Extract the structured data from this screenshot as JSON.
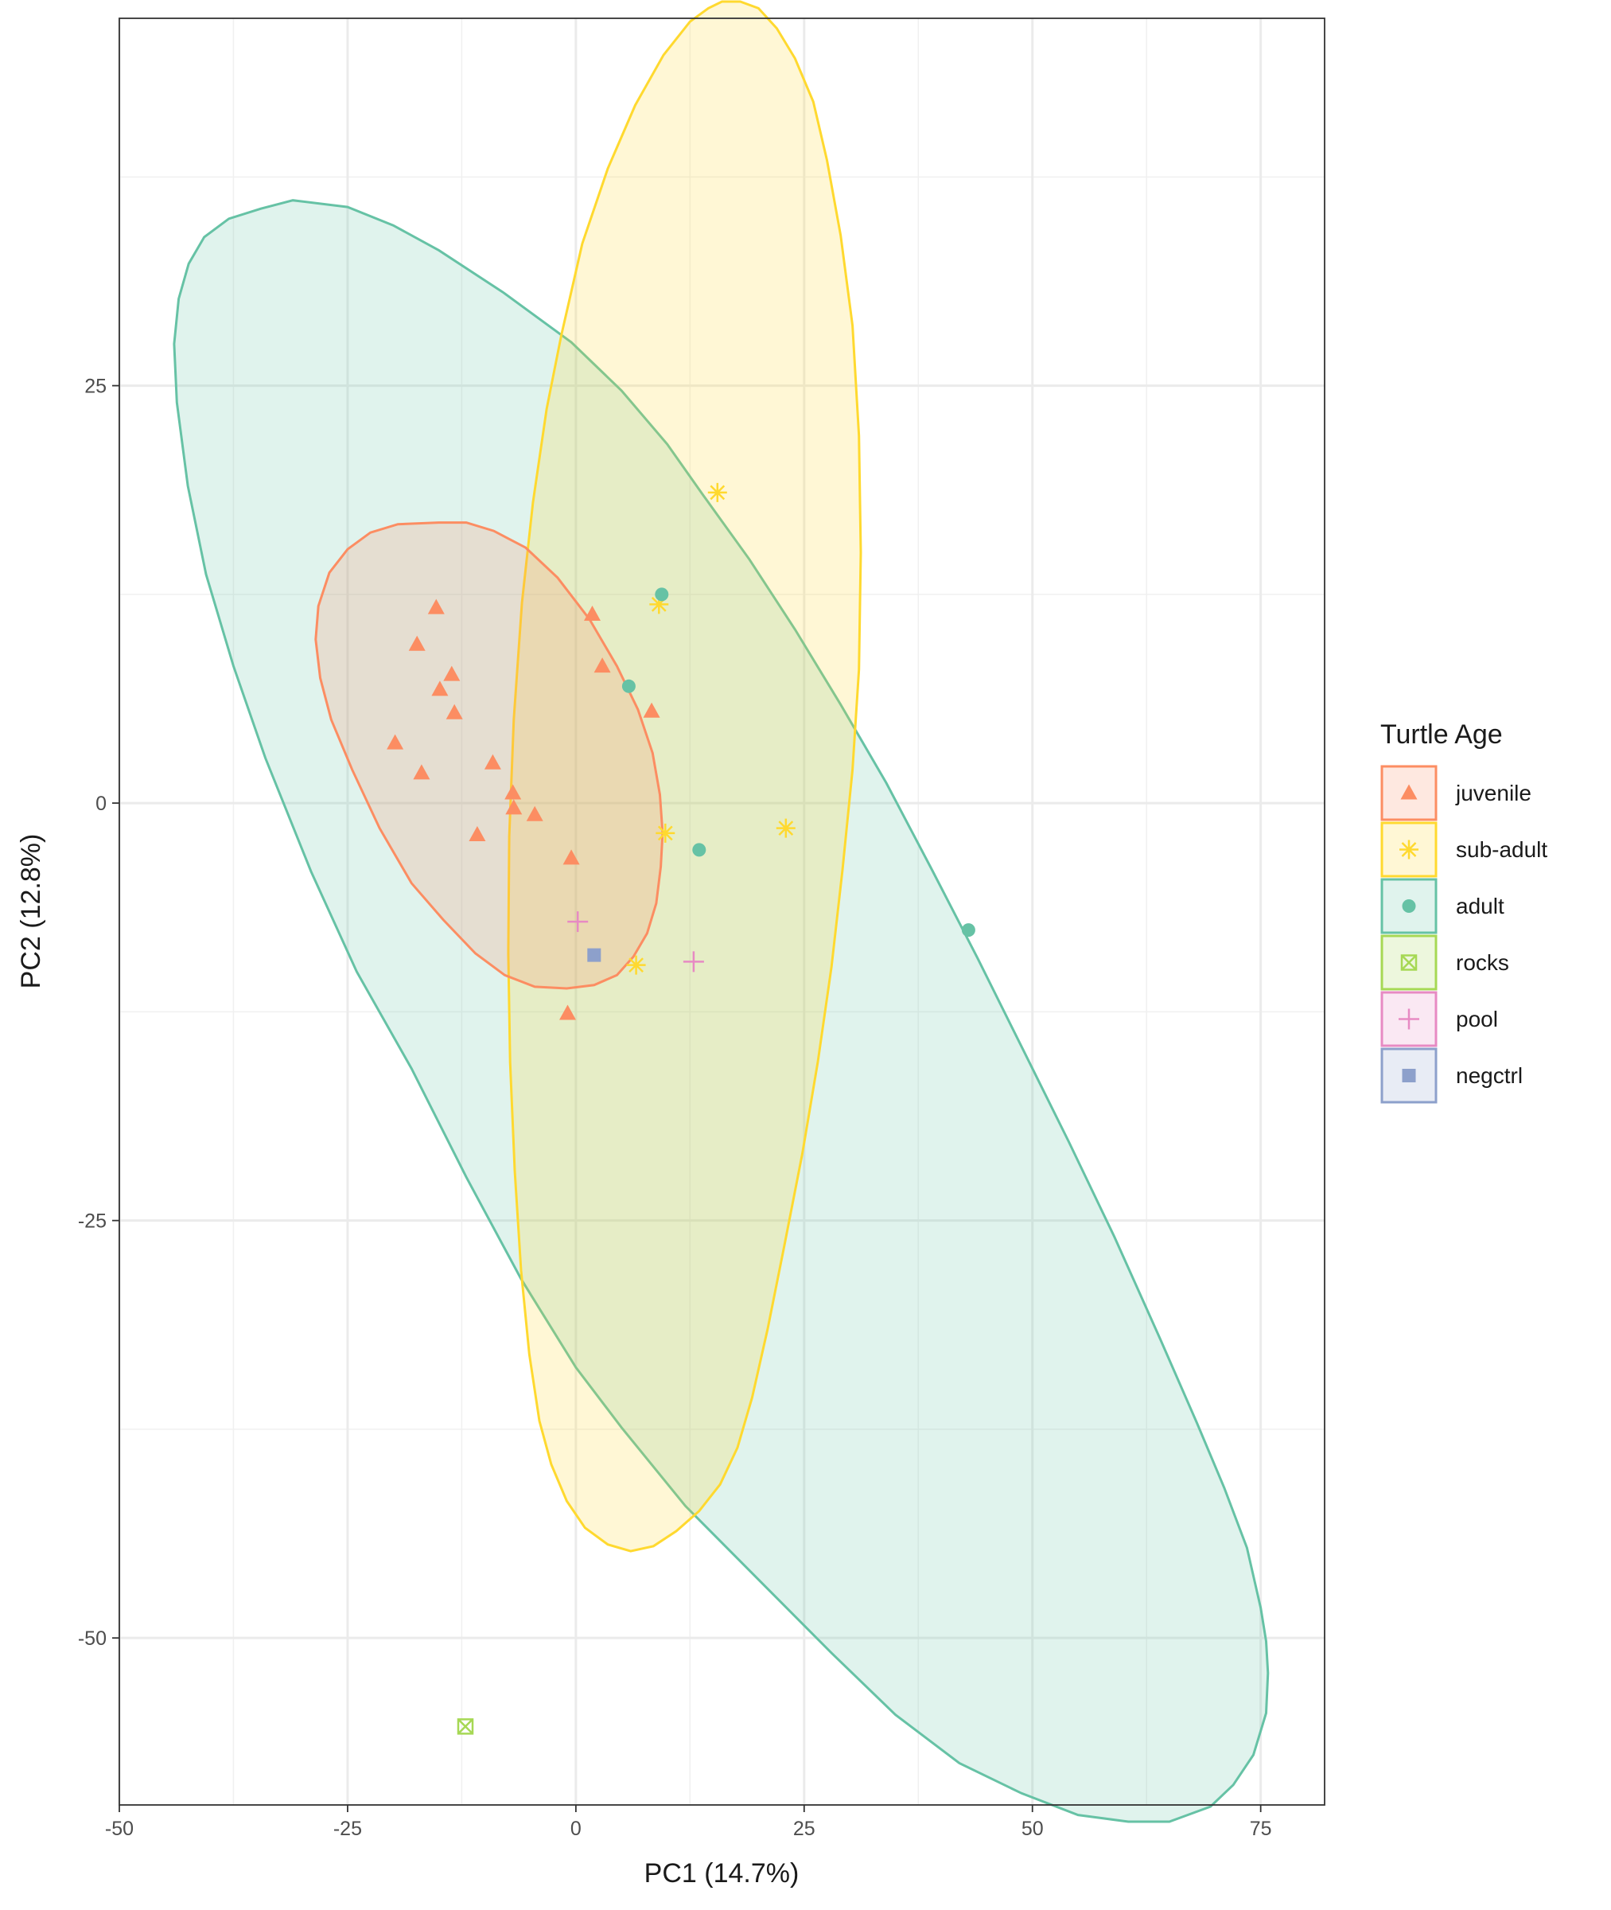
{
  "chart_data": {
    "type": "scatter",
    "xlabel": "PC1 (14.7%)",
    "ylabel": "PC2 (12.8%)",
    "xlim": [
      -50,
      82
    ],
    "ylim": [
      -60,
      47
    ],
    "x_ticks": [
      -50,
      -25,
      0,
      25,
      50,
      75
    ],
    "x_tick_labels": [
      "-50",
      "-25",
      "0",
      "25",
      "50",
      "75"
    ],
    "y_ticks": [
      -50,
      -25,
      0,
      25
    ],
    "y_tick_labels": [
      "-50",
      "-25",
      "0",
      "25"
    ],
    "grid": true,
    "legend": {
      "title": "Turtle Age",
      "position": "right"
    },
    "series": [
      {
        "name": "juvenile",
        "color": "#fc8d62",
        "marker": "triangle",
        "points": [
          [
            -15.3,
            11.7
          ],
          [
            -17.4,
            9.5
          ],
          [
            -13.6,
            7.7
          ],
          [
            -14.9,
            6.8
          ],
          [
            -13.3,
            5.4
          ],
          [
            -19.8,
            3.6
          ],
          [
            -16.9,
            1.8
          ],
          [
            -9.1,
            2.4
          ],
          [
            -6.9,
            0.6
          ],
          [
            -6.8,
            -0.3
          ],
          [
            -4.5,
            -0.7
          ],
          [
            -10.8,
            -1.9
          ],
          [
            -0.5,
            -3.3
          ],
          [
            1.8,
            11.3
          ],
          [
            2.9,
            8.2
          ],
          [
            8.3,
            5.5
          ],
          [
            -0.9,
            -12.6
          ]
        ]
      },
      {
        "name": "sub-adult",
        "color": "#ffd92f",
        "marker": "star",
        "points": [
          [
            15.5,
            18.6
          ],
          [
            9.1,
            11.9
          ],
          [
            9.8,
            -1.8
          ],
          [
            23.0,
            -1.5
          ],
          [
            6.6,
            -9.7
          ]
        ]
      },
      {
        "name": "adult",
        "color": "#66c2a5",
        "marker": "circle",
        "points": [
          [
            9.4,
            12.5
          ],
          [
            5.8,
            7.0
          ],
          [
            13.5,
            -2.8
          ],
          [
            43.0,
            -7.6
          ]
        ]
      },
      {
        "name": "rocks",
        "color": "#a6d854",
        "marker": "square-x",
        "points": [
          [
            -12.1,
            -55.3
          ]
        ]
      },
      {
        "name": "pool",
        "color": "#e78ac3",
        "marker": "plus",
        "points": [
          [
            0.2,
            -7.1
          ],
          [
            12.9,
            -9.5
          ]
        ]
      },
      {
        "name": "negctrl",
        "color": "#8da0cb",
        "marker": "square",
        "points": [
          [
            2.0,
            -9.1
          ]
        ]
      }
    ],
    "ellipses": [
      {
        "group": "adult",
        "color": "#66c2a5",
        "path": [
          [
            -44.0,
            27.5
          ],
          [
            -43.5,
            30.2
          ],
          [
            -42.4,
            32.3
          ],
          [
            -40.7,
            33.9
          ],
          [
            -38.0,
            35.0
          ],
          [
            -34.5,
            35.6
          ],
          [
            -31.0,
            36.1
          ],
          [
            -25.0,
            35.7
          ],
          [
            -20.0,
            34.6
          ],
          [
            -15.0,
            33.1
          ],
          [
            -8.0,
            30.6
          ],
          [
            -0.5,
            27.6
          ],
          [
            5.0,
            24.7
          ],
          [
            10.0,
            21.5
          ],
          [
            14.0,
            18.4
          ],
          [
            19.0,
            14.6
          ],
          [
            24.0,
            10.4
          ],
          [
            29.0,
            5.9
          ],
          [
            34.0,
            1.2
          ],
          [
            39.0,
            -4.0
          ],
          [
            44.0,
            -9.3
          ],
          [
            49.0,
            -14.8
          ],
          [
            54.0,
            -20.3
          ],
          [
            59.0,
            -26.0
          ],
          [
            64.0,
            -32.1
          ],
          [
            68.0,
            -37.1
          ],
          [
            71.0,
            -41.0
          ],
          [
            73.5,
            -44.6
          ],
          [
            75.0,
            -48.2
          ],
          [
            75.6,
            -50.2
          ],
          [
            75.8,
            -52.1
          ],
          [
            75.6,
            -54.5
          ],
          [
            74.2,
            -57.0
          ],
          [
            72.0,
            -58.8
          ],
          [
            69.5,
            -60.1
          ],
          [
            65.0,
            -61.0
          ],
          [
            60.5,
            -61.0
          ],
          [
            55.0,
            -60.6
          ],
          [
            48.8,
            -59.3
          ],
          [
            42.0,
            -57.5
          ],
          [
            35.0,
            -54.6
          ],
          [
            28.0,
            -50.9
          ],
          [
            20.0,
            -46.5
          ],
          [
            12.0,
            -42.1
          ],
          [
            5.0,
            -37.4
          ],
          [
            0.0,
            -33.8
          ],
          [
            -6.0,
            -28.5
          ],
          [
            -12.0,
            -22.4
          ],
          [
            -18.0,
            -15.9
          ],
          [
            -24.0,
            -10.1
          ],
          [
            -29.0,
            -4.1
          ],
          [
            -34.0,
            2.7
          ],
          [
            -37.5,
            8.2
          ],
          [
            -40.5,
            13.7
          ],
          [
            -42.5,
            19.0
          ],
          [
            -43.7,
            24.0
          ]
        ]
      },
      {
        "group": "sub-adult",
        "color": "#ffd92f",
        "path": [
          [
            16.0,
            48.0
          ],
          [
            18.0,
            48.0
          ],
          [
            20.0,
            47.6
          ],
          [
            22.0,
            46.4
          ],
          [
            24.0,
            44.6
          ],
          [
            26.0,
            42.0
          ],
          [
            27.5,
            38.5
          ],
          [
            29.0,
            34.0
          ],
          [
            30.3,
            28.6
          ],
          [
            31.0,
            22.0
          ],
          [
            31.2,
            15.0
          ],
          [
            31.0,
            8.0
          ],
          [
            30.3,
            2.0
          ],
          [
            29.2,
            -4.0
          ],
          [
            28.0,
            -9.8
          ],
          [
            26.5,
            -15.5
          ],
          [
            24.8,
            -21.0
          ],
          [
            22.8,
            -26.6
          ],
          [
            21.0,
            -31.5
          ],
          [
            19.3,
            -35.6
          ],
          [
            17.7,
            -38.6
          ],
          [
            15.8,
            -40.8
          ],
          [
            13.5,
            -42.4
          ],
          [
            11.0,
            -43.6
          ],
          [
            8.5,
            -44.5
          ],
          [
            6.0,
            -44.8
          ],
          [
            3.5,
            -44.4
          ],
          [
            1.0,
            -43.4
          ],
          [
            -1.0,
            -41.8
          ],
          [
            -2.7,
            -39.6
          ],
          [
            -4.0,
            -37.0
          ],
          [
            -5.1,
            -33.0
          ],
          [
            -6.0,
            -28.0
          ],
          [
            -6.7,
            -22.0
          ],
          [
            -7.2,
            -15.5
          ],
          [
            -7.4,
            -9.0
          ],
          [
            -7.3,
            -2.0
          ],
          [
            -6.8,
            5.0
          ],
          [
            -5.9,
            12.0
          ],
          [
            -4.7,
            18.0
          ],
          [
            -3.2,
            23.6
          ],
          [
            -1.6,
            28.0
          ],
          [
            0.7,
            33.5
          ],
          [
            3.5,
            38.0
          ],
          [
            6.5,
            41.8
          ],
          [
            9.6,
            44.8
          ],
          [
            12.5,
            46.8
          ],
          [
            14.5,
            47.6
          ]
        ]
      },
      {
        "group": "juvenile",
        "color": "#fc8d62",
        "path": [
          [
            -15.0,
            16.8
          ],
          [
            -12.0,
            16.8
          ],
          [
            -9.0,
            16.3
          ],
          [
            -5.5,
            15.3
          ],
          [
            -2.0,
            13.5
          ],
          [
            1.5,
            11.0
          ],
          [
            4.5,
            8.2
          ],
          [
            6.8,
            5.6
          ],
          [
            8.4,
            3.0
          ],
          [
            9.2,
            0.5
          ],
          [
            9.5,
            -1.8
          ],
          [
            9.3,
            -3.8
          ],
          [
            8.8,
            -6.0
          ],
          [
            7.8,
            -7.8
          ],
          [
            6.3,
            -9.2
          ],
          [
            4.5,
            -10.3
          ],
          [
            2.0,
            -10.9
          ],
          [
            -1.0,
            -11.1
          ],
          [
            -4.5,
            -11.0
          ],
          [
            -7.8,
            -10.3
          ],
          [
            -11.0,
            -9.0
          ],
          [
            -14.5,
            -7.0
          ],
          [
            -18.0,
            -4.8
          ],
          [
            -21.5,
            -1.5
          ],
          [
            -24.5,
            2.0
          ],
          [
            -26.8,
            5.0
          ],
          [
            -28.0,
            7.5
          ],
          [
            -28.5,
            9.8
          ],
          [
            -28.2,
            11.8
          ],
          [
            -27.0,
            13.8
          ],
          [
            -25.0,
            15.2
          ],
          [
            -22.5,
            16.2
          ],
          [
            -19.5,
            16.7
          ]
        ]
      }
    ]
  }
}
